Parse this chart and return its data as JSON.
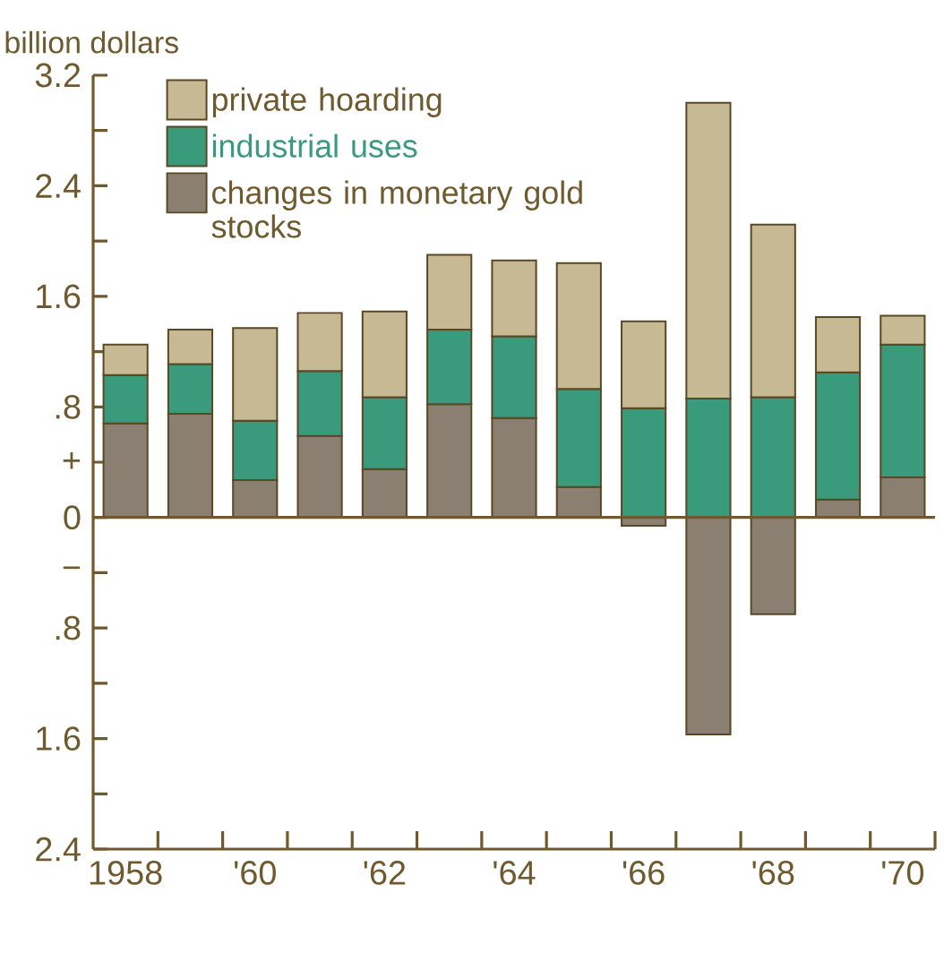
{
  "chart_data": {
    "type": "bar",
    "stacked": true,
    "ylabel": "billion dollars",
    "categories": [
      "1958",
      null,
      "'60",
      null,
      "'62",
      null,
      "'64",
      null,
      "'66",
      null,
      "'68",
      null,
      "'70"
    ],
    "series": [
      {
        "name": "changes in monetary gold stocks",
        "color": "#8a7f70",
        "values": [
          0.68,
          0.75,
          0.27,
          0.59,
          0.35,
          0.82,
          0.72,
          0.22,
          -0.06,
          -1.57,
          -0.7,
          0.13,
          0.29
        ]
      },
      {
        "name": "industrial uses",
        "color": "#3a9a7c",
        "values": [
          0.35,
          0.36,
          0.43,
          0.47,
          0.52,
          0.54,
          0.59,
          0.71,
          0.79,
          0.86,
          0.87,
          0.92,
          0.96
        ]
      },
      {
        "name": "private hoarding",
        "color": "#c8b995",
        "values": [
          0.22,
          0.25,
          0.67,
          0.42,
          0.62,
          0.54,
          0.55,
          0.91,
          0.63,
          2.14,
          1.25,
          0.4,
          0.21
        ]
      }
    ],
    "ylim": [
      -2.4,
      3.2
    ],
    "yticks": [
      3.2,
      {
        "value": 2.8,
        "label": null
      },
      2.4,
      {
        "value": 2.0,
        "label": null
      },
      1.6,
      {
        "value": 1.2,
        "label": null
      },
      {
        "value": 0.8,
        "label": ".8"
      },
      {
        "value": 0.4,
        "label": "+"
      },
      0,
      {
        "value": -0.4,
        "label": "−"
      },
      {
        "value": -0.8,
        "label": ".8"
      },
      {
        "value": -1.2,
        "label": null
      },
      {
        "value": -1.6,
        "label": "1.6"
      },
      {
        "value": -2.0,
        "label": null
      },
      {
        "value": -2.4,
        "label": "2.4"
      }
    ],
    "ref_lines": [
      {
        "axis": "y",
        "value": 0
      }
    ],
    "legend": "top left",
    "grid": false
  }
}
